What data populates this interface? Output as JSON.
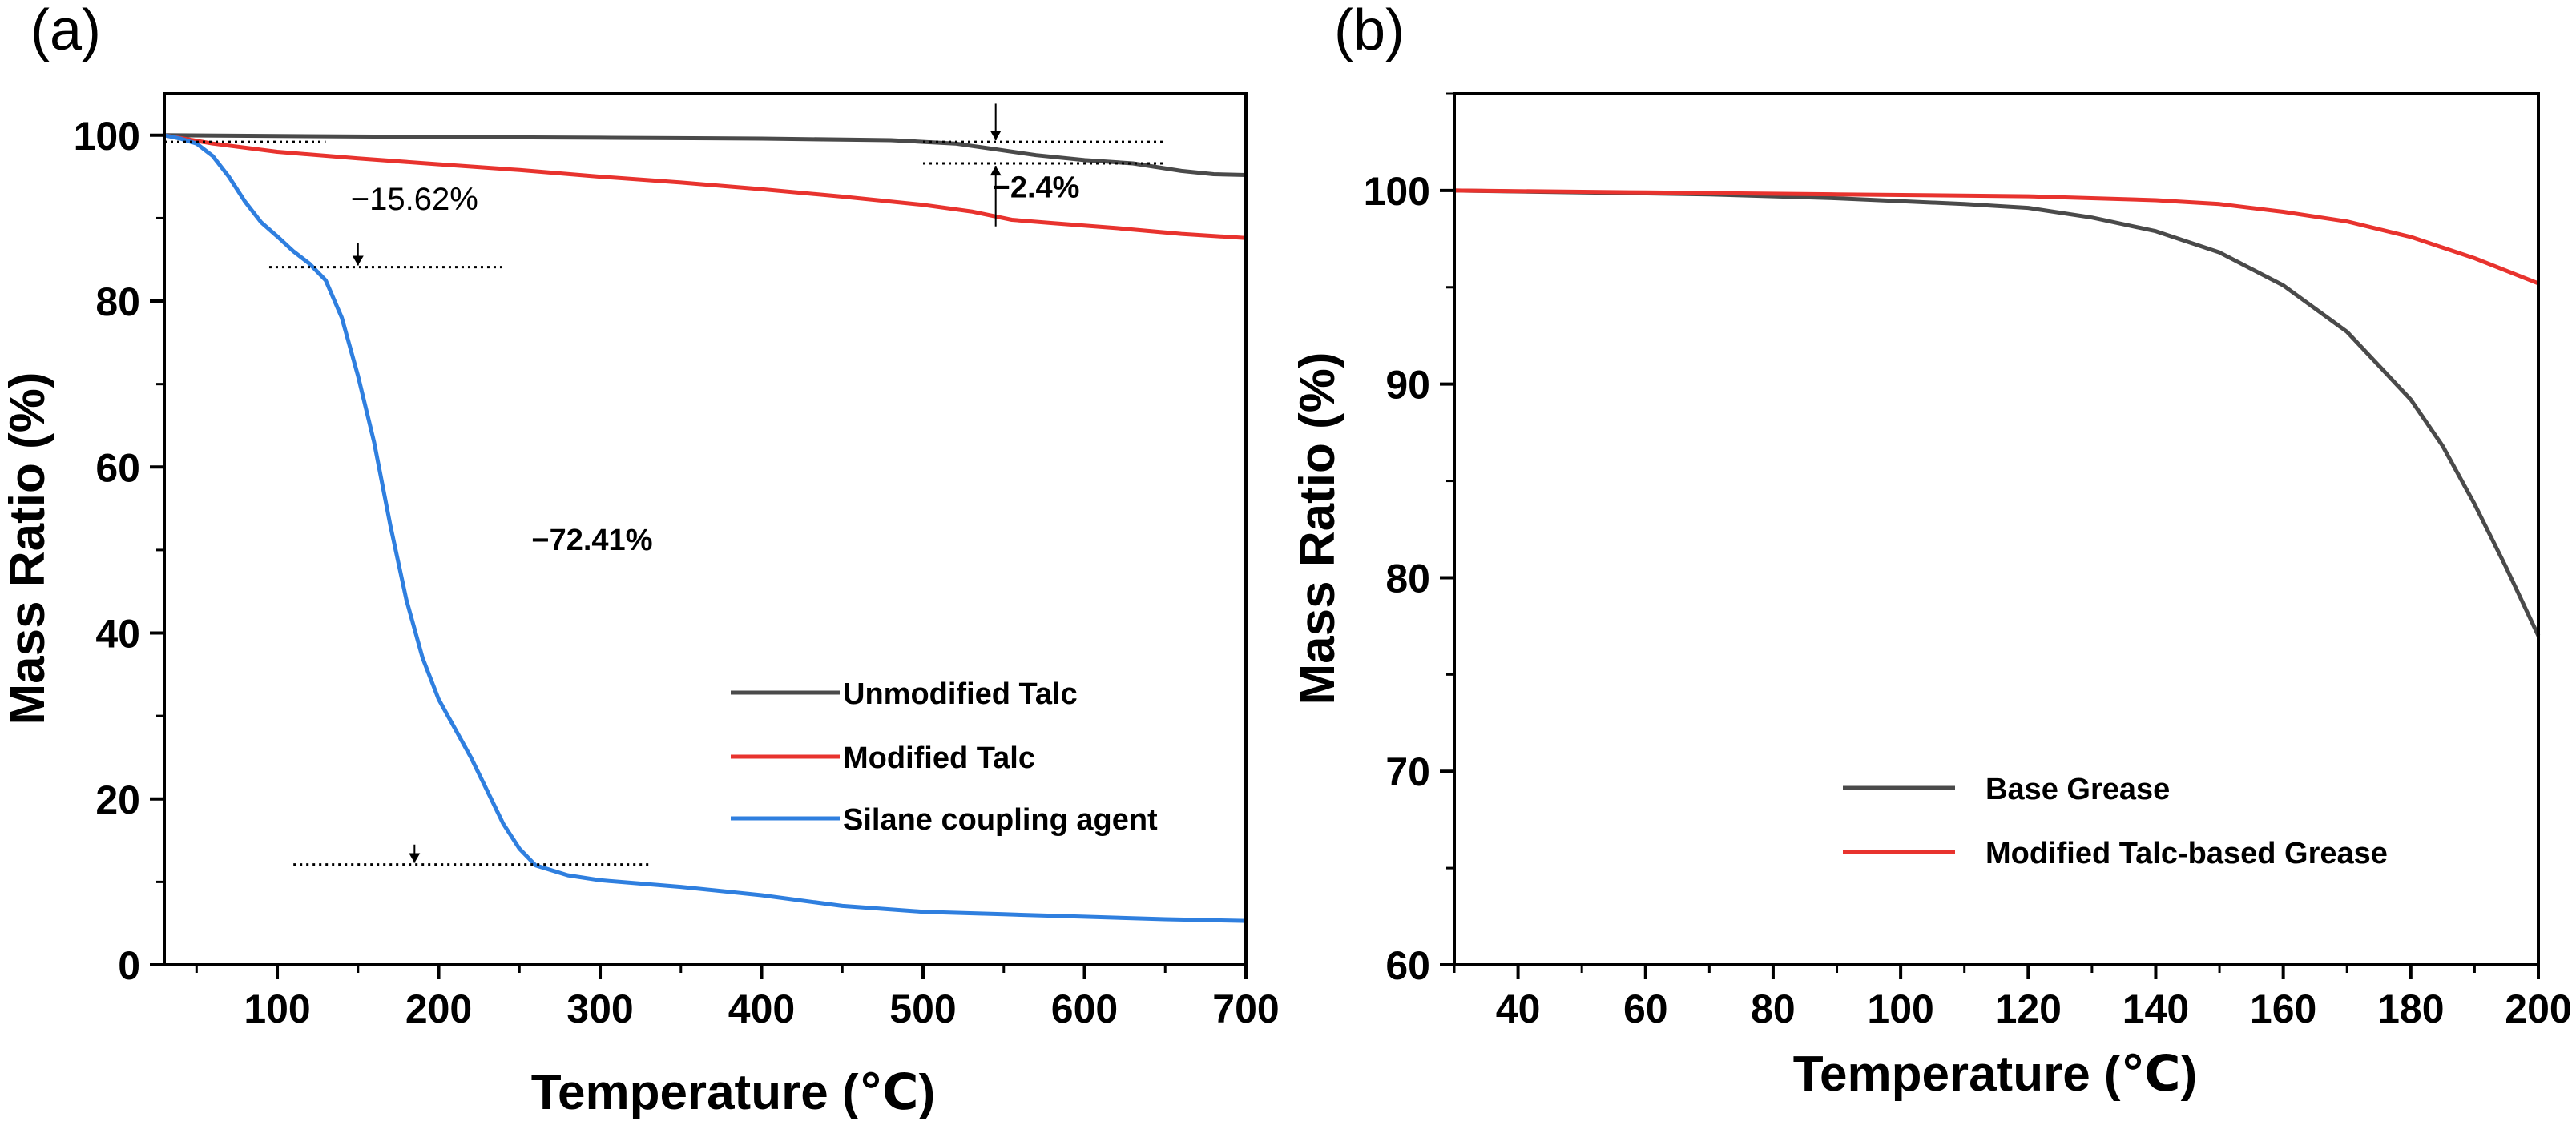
{
  "chart_data": [
    {
      "type": "line",
      "panel_label": "(a)",
      "xlabel": "Temperature (℃)",
      "ylabel": "Mass Ratio (%)",
      "xlim": [
        30,
        700
      ],
      "ylim": [
        0,
        105
      ],
      "xticks": [
        100,
        200,
        300,
        400,
        500,
        600,
        700
      ],
      "yticks": [
        0,
        20,
        40,
        60,
        80,
        100
      ],
      "xtick_labels": [
        "100",
        "200",
        "300",
        "400",
        "500",
        "600",
        "700"
      ],
      "ytick_labels": [
        "0",
        "20",
        "40",
        "60",
        "80",
        "100"
      ],
      "legend_position": "bottom-right",
      "series": [
        {
          "name": "Unmodified Talc",
          "color": "#4a4a4a",
          "points": [
            [
              30,
              100
            ],
            [
              100,
              99.9
            ],
            [
              200,
              99.8
            ],
            [
              300,
              99.7
            ],
            [
              400,
              99.6
            ],
            [
              480,
              99.4
            ],
            [
              520,
              99.0
            ],
            [
              545,
              98.3
            ],
            [
              570,
              97.6
            ],
            [
              600,
              97.0
            ],
            [
              630,
              96.6
            ],
            [
              660,
              95.7
            ],
            [
              680,
              95.3
            ],
            [
              700,
              95.2
            ]
          ]
        },
        {
          "name": "Modified Talc",
          "color": "#e8332e",
          "points": [
            [
              30,
              100
            ],
            [
              60,
              99
            ],
            [
              100,
              98
            ],
            [
              150,
              97.2
            ],
            [
              200,
              96.5
            ],
            [
              250,
              95.8
            ],
            [
              300,
              95
            ],
            [
              350,
              94.3
            ],
            [
              400,
              93.5
            ],
            [
              450,
              92.6
            ],
            [
              500,
              91.6
            ],
            [
              530,
              90.8
            ],
            [
              555,
              89.8
            ],
            [
              580,
              89.4
            ],
            [
              620,
              88.8
            ],
            [
              660,
              88.1
            ],
            [
              700,
              87.6
            ]
          ]
        },
        {
          "name": "Silane coupling agent",
          "color": "#2f7fdf",
          "points": [
            [
              30,
              100
            ],
            [
              40,
              99.6
            ],
            [
              50,
              99
            ],
            [
              60,
              97.5
            ],
            [
              70,
              95
            ],
            [
              80,
              92
            ],
            [
              90,
              89.5
            ],
            [
              100,
              87.8
            ],
            [
              110,
              86
            ],
            [
              120,
              84.5
            ],
            [
              130,
              82.5
            ],
            [
              140,
              78
            ],
            [
              150,
              71
            ],
            [
              160,
              63
            ],
            [
              170,
              53
            ],
            [
              180,
              44
            ],
            [
              190,
              37
            ],
            [
              200,
              32
            ],
            [
              210,
              28.5
            ],
            [
              220,
              25
            ],
            [
              230,
              21
            ],
            [
              240,
              17
            ],
            [
              250,
              14
            ],
            [
              260,
              12
            ],
            [
              280,
              10.8
            ],
            [
              300,
              10.2
            ],
            [
              350,
              9.4
            ],
            [
              400,
              8.4
            ],
            [
              450,
              7.1
            ],
            [
              500,
              6.4
            ],
            [
              550,
              6.1
            ],
            [
              600,
              5.8
            ],
            [
              650,
              5.5
            ],
            [
              700,
              5.3
            ]
          ]
        }
      ],
      "annotations": [
        {
          "text": "−15.62%",
          "x": 185,
          "y": 91
        },
        {
          "text": "−72.41%",
          "x": 295,
          "y": 50
        },
        {
          "text": "−2.4%",
          "x": 570,
          "y": 92.5
        }
      ],
      "reference_lines": [
        {
          "y": 99.2,
          "x_from": 30,
          "x_to": 130,
          "style": "dotted"
        },
        {
          "y": 84.1,
          "x_from": 95,
          "x_to": 240,
          "style": "dotted"
        },
        {
          "y": 12.1,
          "x_from": 110,
          "x_to": 330,
          "style": "dotted"
        },
        {
          "y": 99.2,
          "x_from": 500,
          "x_to": 650,
          "style": "dotted"
        },
        {
          "y": 96.6,
          "x_from": 500,
          "x_to": 650,
          "style": "dotted"
        }
      ],
      "arrows": [
        {
          "x": 150,
          "y_from": 87,
          "y_to": 84.3,
          "direction": "down"
        },
        {
          "x": 185,
          "y_from": 14.5,
          "y_to": 12.3,
          "direction": "down"
        },
        {
          "x": 545,
          "y_from": 103.8,
          "y_to": 99.4,
          "direction": "down"
        },
        {
          "x": 545,
          "y_from": 89.0,
          "y_to": 96.3,
          "direction": "up"
        }
      ]
    },
    {
      "type": "line",
      "panel_label": "(b)",
      "xlabel": "Temperature (℃)",
      "ylabel": "Mass Ratio (%)",
      "xlim": [
        30,
        200
      ],
      "ylim": [
        60,
        105
      ],
      "xticks": [
        40,
        60,
        80,
        100,
        120,
        140,
        160,
        180,
        200
      ],
      "yticks": [
        60,
        70,
        80,
        90,
        100
      ],
      "xtick_labels": [
        "40",
        "60",
        "80",
        "100",
        "120",
        "140",
        "160",
        "180",
        "200"
      ],
      "ytick_labels": [
        "60",
        "70",
        "80",
        "90",
        "100"
      ],
      "legend_position": "bottom-right",
      "series": [
        {
          "name": "Base Grease",
          "color": "#4a4a4a",
          "points": [
            [
              30,
              100
            ],
            [
              50,
              99.9
            ],
            [
              70,
              99.8
            ],
            [
              90,
              99.6
            ],
            [
              110,
              99.3
            ],
            [
              120,
              99.1
            ],
            [
              130,
              98.6
            ],
            [
              140,
              97.9
            ],
            [
              150,
              96.8
            ],
            [
              160,
              95.1
            ],
            [
              170,
              92.7
            ],
            [
              180,
              89.2
            ],
            [
              185,
              86.8
            ],
            [
              190,
              83.8
            ],
            [
              195,
              80.5
            ],
            [
              200,
              77
            ]
          ]
        },
        {
          "name": "Modified Talc-based Grease",
          "color": "#e8332e",
          "points": [
            [
              30,
              100
            ],
            [
              60,
              99.9
            ],
            [
              90,
              99.8
            ],
            [
              120,
              99.7
            ],
            [
              140,
              99.5
            ],
            [
              150,
              99.3
            ],
            [
              160,
              98.9
            ],
            [
              170,
              98.4
            ],
            [
              180,
              97.6
            ],
            [
              190,
              96.5
            ],
            [
              200,
              95.2
            ]
          ]
        }
      ]
    }
  ]
}
